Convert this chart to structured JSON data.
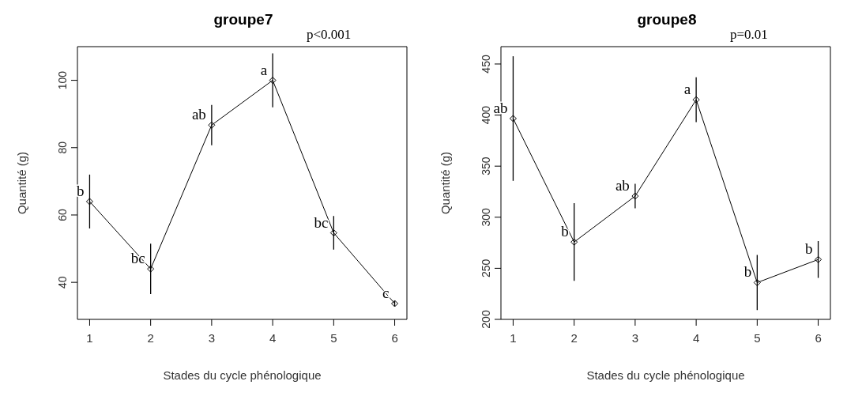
{
  "chart_data": [
    {
      "type": "line",
      "title": "groupe7",
      "xlabel": "Stades du cycle phénologique",
      "ylabel": "Quantité (g)",
      "x": [
        1,
        2,
        3,
        4,
        5,
        6
      ],
      "xlim": [
        0.8,
        6.2
      ],
      "xticks": [
        1,
        2,
        3,
        4,
        5,
        6
      ],
      "ylim": [
        29,
        110
      ],
      "yticks": [
        40,
        60,
        80,
        100
      ],
      "grid": false,
      "marker": "diamond",
      "line_style": "solid",
      "series": [
        {
          "color": "#000000",
          "values": [
            64,
            44,
            86.7,
            100,
            54.7,
            33.7
          ],
          "errors": [
            8,
            7.5,
            6,
            8,
            5,
            0.8
          ]
        }
      ],
      "annotations": [
        "p<0.001",
        "b",
        "bc",
        "ab",
        "a",
        "bc",
        "c"
      ]
    },
    {
      "type": "line",
      "title": "groupe8",
      "xlabel": "Stades du cycle phénologique",
      "ylabel": "Quantité (g)",
      "x": [
        1,
        2,
        3,
        4,
        5,
        6
      ],
      "xlim": [
        0.8,
        6.2
      ],
      "xticks": [
        1,
        2,
        3,
        4,
        5,
        6
      ],
      "ylim": [
        200,
        467
      ],
      "yticks": [
        200,
        250,
        300,
        350,
        400,
        450
      ],
      "grid": false,
      "marker": "diamond",
      "line_style": "solid",
      "series": [
        {
          "color": "#000000",
          "values": [
            396.6,
            275.7,
            320.7,
            415,
            236,
            258.6
          ],
          "errors": [
            61,
            38,
            12,
            22,
            27,
            18
          ]
        }
      ],
      "annotations": [
        "p=0.01",
        "ab",
        "b",
        "ab",
        "a",
        "b",
        "b"
      ]
    }
  ]
}
